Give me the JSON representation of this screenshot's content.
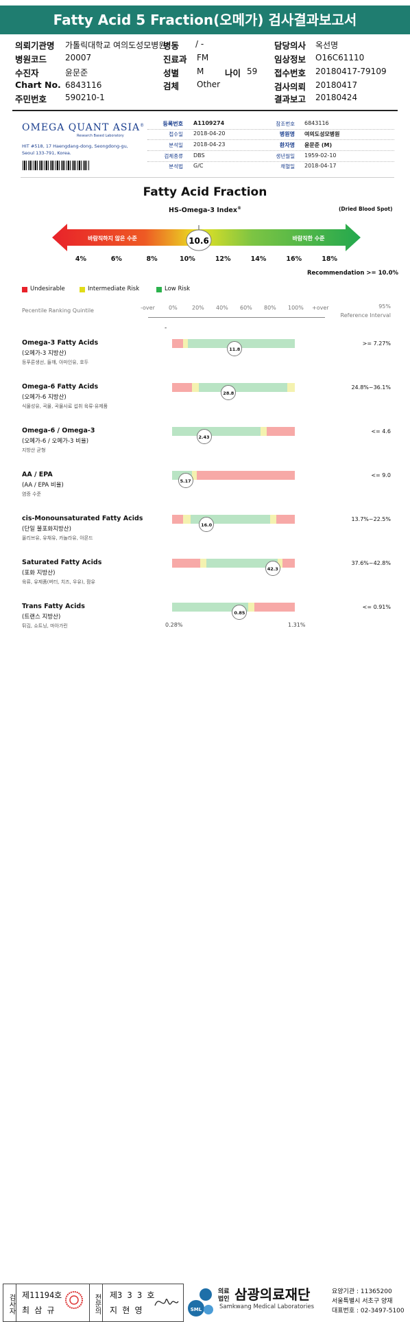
{
  "title": "Fatty Acid 5 Fraction(오메가) 검사결과보고서",
  "header": {
    "left": [
      {
        "label": "의뢰기관명",
        "value": "가톨릭대학교 여의도성모병원"
      },
      {
        "label": "병원코드",
        "value": "20007"
      },
      {
        "label": "수진자",
        "value": "윤문준"
      },
      {
        "label": "Chart No.",
        "value": "6843116"
      },
      {
        "label": "주민번호",
        "value": "590210-1"
      }
    ],
    "mid": [
      {
        "label": "병동",
        "value": "/ -"
      },
      {
        "label": "진료과",
        "value": "FM"
      },
      {
        "label": "성별",
        "value": "M"
      },
      {
        "label": "검체",
        "value": "Other"
      }
    ],
    "age_label": "나이",
    "age_value": "59",
    "right": [
      {
        "label": "담당의사",
        "value": "옥선명"
      },
      {
        "label": "임상정보",
        "value": "O16C61110"
      },
      {
        "label": "접수번호",
        "value": "20180417-79109"
      },
      {
        "label": "검사의뢰",
        "value": "20180417"
      },
      {
        "label": "결과보고",
        "value": "20180424"
      }
    ]
  },
  "lab": {
    "logo": "OMEGA QUANT ASIA",
    "logo_reg": "®",
    "logo_sub": "Research Based Laboratory",
    "address_1": "HIT #518, 17 Haengdang-dong, Seongdong-gu,",
    "address_2": "Seoul 133-791, Korea."
  },
  "info_left": [
    {
      "label": "등록번호",
      "value": "A1109274",
      "bold": true
    },
    {
      "label": "접수일",
      "value": "2018-04-20"
    },
    {
      "label": "분석일",
      "value": "2018-04-23"
    },
    {
      "label": "검체종류",
      "value": "DBS"
    },
    {
      "label": "분석법",
      "value": "G/C"
    }
  ],
  "info_right": [
    {
      "label": "참조번호",
      "value": "6843116"
    },
    {
      "label": "병원명",
      "value": "여의도성모병원",
      "bold": true
    },
    {
      "label": "환자명",
      "value": "윤문준 (M)",
      "bold": true
    },
    {
      "label": "생년월일",
      "value": "1959-02-10"
    },
    {
      "label": "채혈일",
      "value": "2018-04-17"
    }
  ],
  "chart_title": "Fatty Acid Fraction",
  "index_title": "HS-Omega-3 Index",
  "index_reg": "®",
  "dried_label": "(Dried Blood Spot)",
  "arrow": {
    "left_text": "바람직하지 않은 수준",
    "right_text": "바람직한 수준",
    "value": "10.6",
    "ticks": [
      "4%",
      "6%",
      "8%",
      "10%",
      "12%",
      "14%",
      "16%",
      "18%"
    ]
  },
  "recommendation": "Recommendation  >= 10.0%",
  "legend": [
    {
      "label": "Undesirable",
      "color": "#e8222a"
    },
    {
      "label": "Intermediate Risk",
      "color": "#e1dc18"
    },
    {
      "label": "Low Risk",
      "color": "#2bb24c"
    }
  ],
  "percentile_label": "Pecentile Ranking Quintile",
  "percentile_ticks": [
    "-over",
    "0%",
    "20%",
    "40%",
    "60%",
    "80%",
    "100%",
    "+over"
  ],
  "ref_header_1": "95%",
  "ref_header_2": "Reference Interval",
  "dash": "-",
  "colors": {
    "red": "#f7a9a7",
    "yellow": "#f4f2b0",
    "green": "#b9e4c4"
  },
  "rows": [
    {
      "name": "Omega-3 Fatty Acids",
      "kor": "(오메가-3 지방산)",
      "desc": "등푸른생선, 들깨, 아마인유, 호두",
      "ref": ">= 7.27%",
      "value": "11.8",
      "marker_pos": 0.51,
      "segs": [
        [
          "red",
          0.09
        ],
        [
          "yellow",
          0.04
        ],
        [
          "green",
          0.87
        ]
      ]
    },
    {
      "name": "Omega-6 Fatty Acids",
      "kor": "(오메가-6 지방산)",
      "desc": "식물성유, 곡물, 곡물사료 섭취 육류·유제품",
      "ref": "24.8%~36.1%",
      "value": "28.8",
      "marker_pos": 0.46,
      "segs": [
        [
          "red",
          0.16
        ],
        [
          "yellow",
          0.06
        ],
        [
          "green",
          0.72
        ],
        [
          "yellow",
          0.06
        ]
      ]
    },
    {
      "name": "Omega-6 / Omega-3",
      "kor": "(오메가-6 / 오메가-3 비율)",
      "desc": "지방산 균형",
      "ref": "<= 4.6",
      "value": "2.43",
      "marker_pos": 0.26,
      "segs": [
        [
          "green",
          0.72
        ],
        [
          "yellow",
          0.05
        ],
        [
          "red",
          0.23
        ]
      ]
    },
    {
      "name": "AA / EPA",
      "kor": "(AA / EPA 비율)",
      "desc": "염증 수준",
      "ref": "<= 9.0",
      "value": "5.17",
      "marker_pos": 0.11,
      "segs": [
        [
          "green",
          0.16
        ],
        [
          "yellow",
          0.04
        ],
        [
          "red",
          0.8
        ]
      ]
    },
    {
      "name": "cis-Monounsaturated Fatty Acids",
      "kor": "(단일 불포화지방산)",
      "desc": "올리브유, 유채유, 카놀라유, 아몬드",
      "ref": "13.7%~22.5%",
      "value": "16.0",
      "marker_pos": 0.28,
      "segs": [
        [
          "red",
          0.09
        ],
        [
          "yellow",
          0.06
        ],
        [
          "green",
          0.65
        ],
        [
          "yellow",
          0.05
        ],
        [
          "red",
          0.15
        ]
      ]
    },
    {
      "name": "Saturated Fatty Acids",
      "kor": "(포화 지방산)",
      "desc": "육류, 유제품(버터, 치즈, 우유), 팜유",
      "ref": "37.6%~42.8%",
      "value": "42.3",
      "marker_pos": 0.82,
      "segs": [
        [
          "red",
          0.23
        ],
        [
          "yellow",
          0.05
        ],
        [
          "green",
          0.58
        ],
        [
          "yellow",
          0.04
        ],
        [
          "red",
          0.1
        ]
      ]
    },
    {
      "name": "Trans Fatty Acids",
      "kor": "(트랜스 지방산)",
      "desc": "튀김, 쇼트닝, 마아가린",
      "ref": "<= 0.91%",
      "value": "0.85",
      "marker_pos": 0.55,
      "segs": [
        [
          "green",
          0.62
        ],
        [
          "yellow",
          0.05
        ],
        [
          "red",
          0.33
        ]
      ]
    }
  ],
  "trans_min": "0.28%",
  "trans_max": "1.31%",
  "footer": {
    "examiner_label": "검사자",
    "examiner_no": "제11194호",
    "examiner_name": "최 삼 규",
    "reviewer_label": "전문의",
    "reviewer_no": "제3 3 3 호",
    "reviewer_name": "지 현 영",
    "sml": "SML",
    "org_prefix_1": "의료",
    "org_prefix_2": "법인",
    "org_name": "삼광의료재단",
    "org_en": "Samkwang Medical Laboratories",
    "care_label": "요양기관 : 11365200",
    "address": "서울특별시 서초구 양재",
    "phone": "대표번호 : 02-3497-5100"
  }
}
